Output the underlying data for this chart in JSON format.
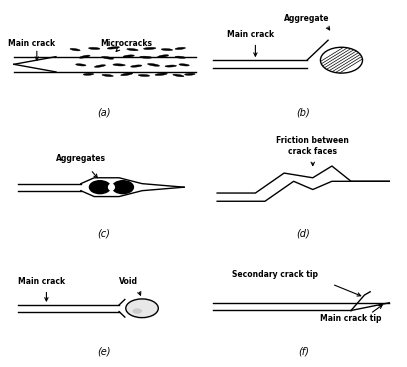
{
  "figure_width": 4.07,
  "figure_height": 3.67,
  "dpi": 100,
  "background_color": "#ffffff",
  "line_color": "#000000",
  "label_a": "(a)",
  "label_b": "(b)",
  "label_c": "(c)",
  "label_d": "(d)",
  "label_e": "(e)",
  "label_f": "(f)"
}
